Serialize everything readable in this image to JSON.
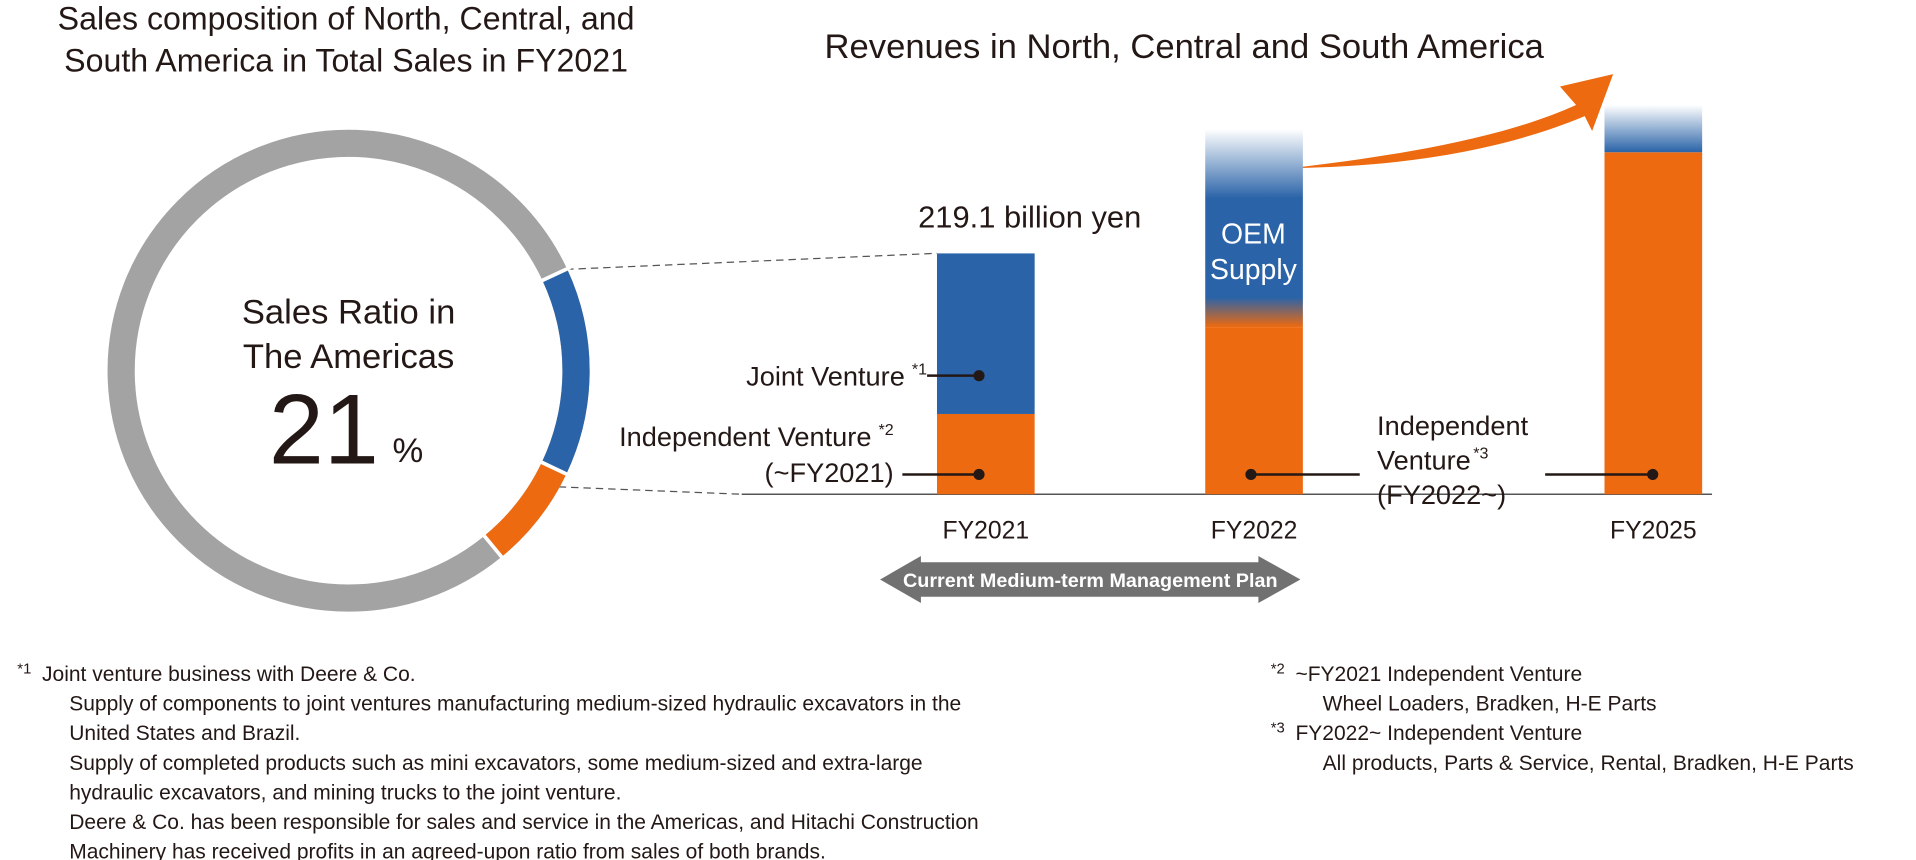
{
  "chart_data": {
    "type": "bar",
    "donut": {
      "title": [
        "Sales composition of North, Central, and",
        "South America in Total Sales in FY2021"
      ],
      "label": [
        "Sales Ratio in",
        "The Americas"
      ],
      "value": 21,
      "unit": "%",
      "segments": [
        {
          "color": "#2a63a8",
          "value": 14
        },
        {
          "color": "#ee6a10",
          "value": 7
        }
      ],
      "rest_color": "#a3a3a3"
    },
    "title": "Revenues in North, Central and South America",
    "categories": [
      "FY2021",
      "FY2022",
      "FY2025"
    ],
    "series": [
      {
        "color": "#ee6a10",
        "values": [
          73,
          152,
          311
        ]
      },
      {
        "color": "#2a63a8",
        "values": [
          146,
          180,
          43
        ]
      }
    ],
    "total_label": "219.1 billion yen",
    "oem_label": [
      "OEM",
      "Supply"
    ],
    "annotations": [
      {
        "lines": [
          "Joint Venture"
        ],
        "sup": "*1"
      },
      {
        "lines": [
          "Independent Venture",
          "(~FY2021)"
        ],
        "sup": "*2"
      },
      {
        "lines": [
          "Independent",
          "Venture",
          "(FY2022~)"
        ],
        "sup": "*3"
      }
    ],
    "plan_label": "Current Medium-term Management Plan"
  },
  "footnotes": [
    {
      "mark": "*1",
      "lines": [
        "Joint venture business with Deere & Co.",
        "Supply of components to joint ventures manufacturing medium-sized hydraulic excavators in the",
        "United States and Brazil.",
        "Supply of completed products such as mini excavators, some medium-sized and extra-large",
        "hydraulic excavators, and mining trucks to the joint venture.",
        "Deere & Co. has been responsible for sales and service in the Americas, and Hitachi Construction",
        "Machinery has received profits in an agreed-upon ratio from sales of both brands."
      ]
    },
    {
      "mark": "*2",
      "lines": [
        "~FY2021 Independent Venture",
        "Wheel Loaders, Bradken, H-E Parts"
      ]
    },
    {
      "mark": "*3",
      "lines": [
        "FY2022~ Independent Venture",
        "All products, Parts & Service, Rental, Bradken, H-E Parts"
      ]
    }
  ]
}
